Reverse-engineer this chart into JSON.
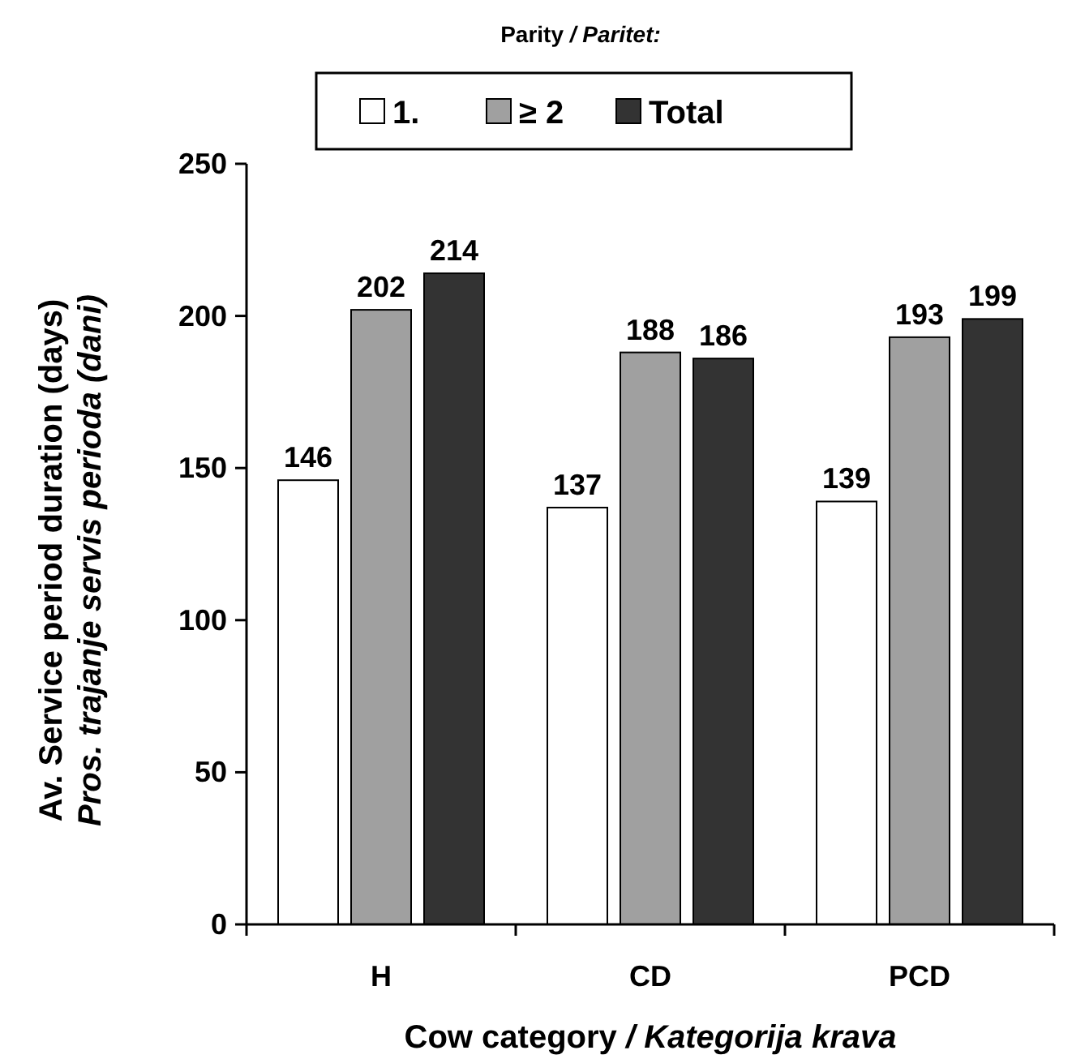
{
  "chart_data": {
    "type": "bar",
    "legend_title": "Parity / Paritet:",
    "xlabel": "Cow category / Kategorija krava",
    "ylabel": "Av. Service period duration (days)\nPros. trajanje servis perioda (dani)",
    "categories": [
      "H",
      "CD",
      "PCD"
    ],
    "series": [
      {
        "name": "1.",
        "color": "#ffffff",
        "values": [
          146,
          137,
          139
        ]
      },
      {
        "name": "≥ 2",
        "color": "#a0a0a0",
        "values": [
          202,
          188,
          193
        ]
      },
      {
        "name": "Total",
        "color": "#333333",
        "values": [
          214,
          186,
          199
        ]
      }
    ],
    "ylim": [
      0,
      250
    ],
    "yticks": [
      0,
      50,
      100,
      150,
      200,
      250
    ],
    "data_labels": true,
    "legend": "top",
    "grid": false
  }
}
